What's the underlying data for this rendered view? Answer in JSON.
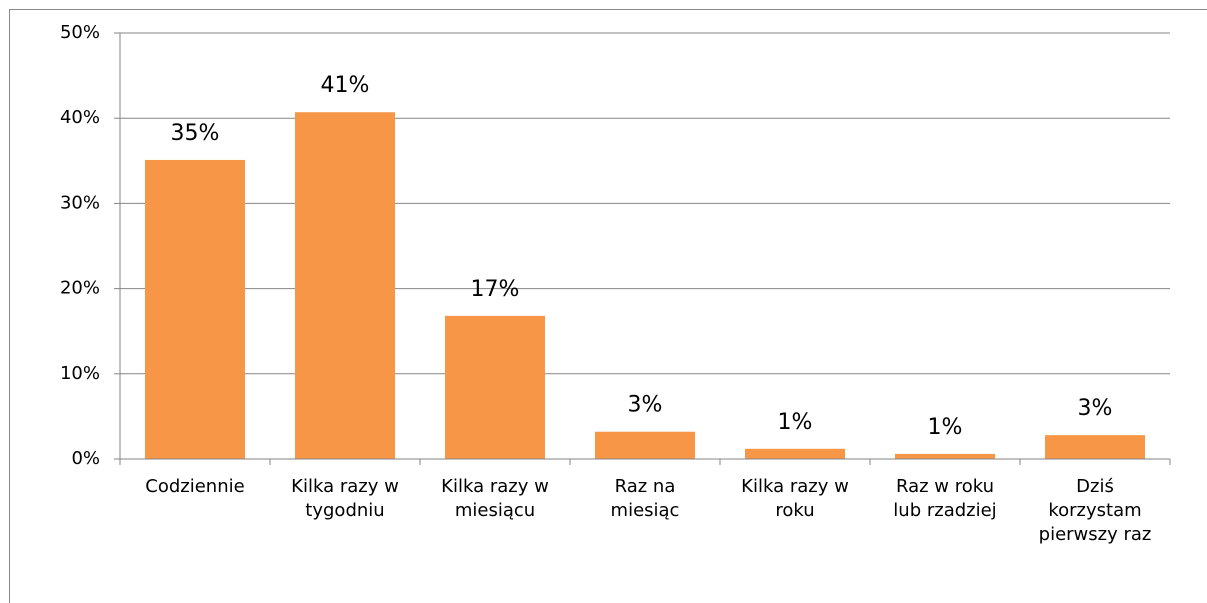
{
  "chart_data": {
    "type": "bar",
    "categories": [
      "Codziennie",
      "Kilka razy w tygodniu",
      "Kilka razy w miesiącu",
      "Raz na miesiąc",
      "Kilka razy w roku",
      "Raz w roku lub rzadziej",
      "Dziś korzystam pierwszy raz"
    ],
    "values": [
      35.1,
      40.7,
      16.8,
      3.2,
      1.2,
      0.6,
      2.8
    ],
    "value_labels": [
      "35%",
      "41%",
      "17%",
      "3%",
      "1%",
      "1%",
      "3%"
    ],
    "color": "#f79646",
    "ylim": [
      0,
      50
    ],
    "yticks": [
      {
        "value": 0,
        "label": "0%"
      },
      {
        "value": 10,
        "label": "10%"
      },
      {
        "value": 20,
        "label": "20%"
      },
      {
        "value": 30,
        "label": "30%"
      },
      {
        "value": 40,
        "label": "40%"
      },
      {
        "value": 50,
        "label": "50%"
      }
    ],
    "grid": true
  }
}
